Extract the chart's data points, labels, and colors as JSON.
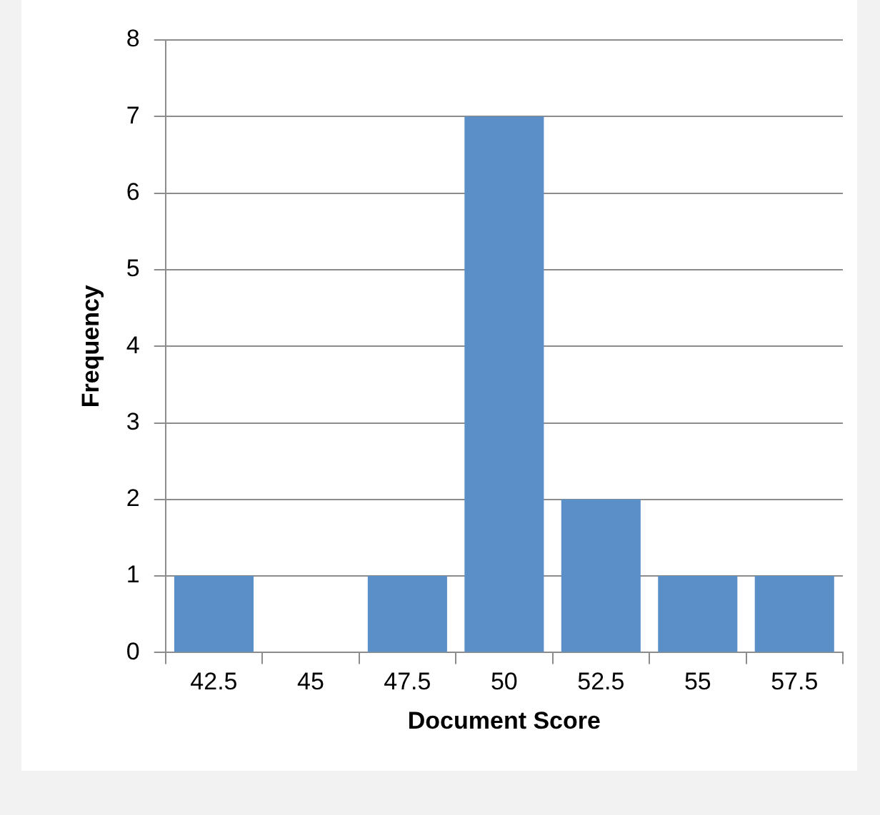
{
  "chart_data": {
    "type": "bar",
    "xlabel": "Document Score",
    "ylabel": "Frequency",
    "categories": [
      "42.5",
      "45",
      "47.5",
      "50",
      "52.5",
      "55",
      "57.5"
    ],
    "values": [
      1,
      0,
      1,
      7,
      2,
      1,
      1
    ],
    "color": "#5b8fc7",
    "ylim": [
      0,
      8
    ],
    "yticks": [
      0,
      1,
      2,
      3,
      4,
      5,
      6,
      7,
      8
    ],
    "grid": "y",
    "legend": false
  }
}
